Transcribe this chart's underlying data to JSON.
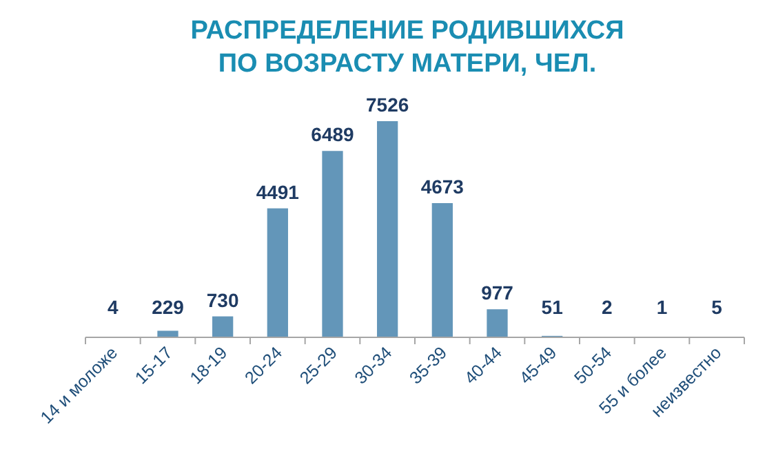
{
  "chart_data": {
    "type": "bar",
    "title": "РАСПРЕДЕЛЕНИЕ РОДИВШИХСЯ\nПО ВОЗРАСТУ МАТЕРИ, ЧЕЛ.",
    "categories": [
      "14 и моложе",
      "15-17",
      "18-19",
      "20-24",
      "25-29",
      "30-34",
      "35-39",
      "40-44",
      "45-49",
      "50-54",
      "55 и более",
      "неизвестно"
    ],
    "values": [
      4,
      229,
      730,
      4491,
      6489,
      7526,
      4673,
      977,
      51,
      2,
      1,
      5
    ],
    "color": "#6396b9",
    "data_labels": true,
    "tick_labels": "x"
  }
}
